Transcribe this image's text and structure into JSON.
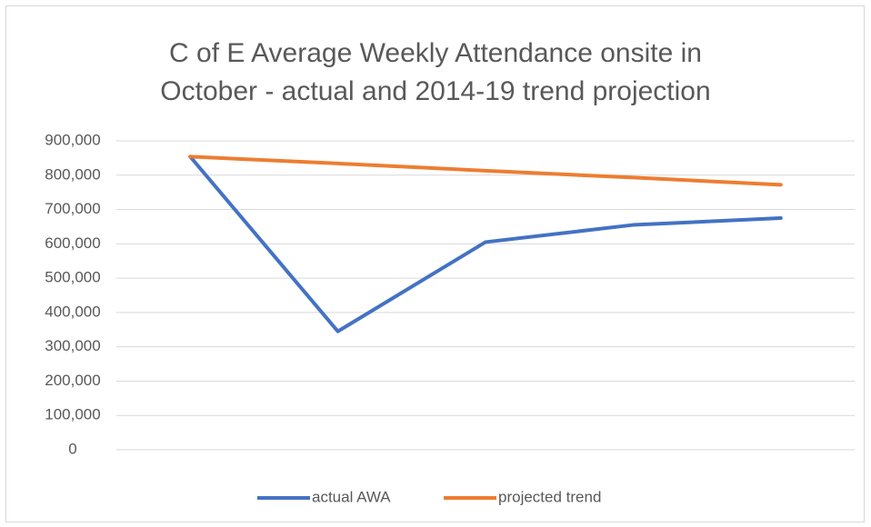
{
  "chart_data": {
    "type": "line",
    "title": "C of E Average Weekly Attendance onsite in October - actual and 2014-19 trend projection",
    "categories": [
      null,
      null,
      null,
      null,
      null
    ],
    "series": [
      {
        "name": "actual AWA",
        "color": "#4472c4",
        "values": [
          854000,
          345000,
          605000,
          655000,
          675000
        ]
      },
      {
        "name": "projected trend",
        "color": "#ed7d31",
        "values": [
          854000,
          834000,
          813000,
          793000,
          772000
        ]
      }
    ],
    "ylim": [
      0,
      900000
    ],
    "yticks": [
      0,
      {
        "value": 100000,
        "label": "100,000"
      },
      {
        "value": 200000,
        "label": "200,000"
      },
      {
        "value": 300000,
        "label": "300,000"
      },
      {
        "value": 400000,
        "label": "400,000"
      },
      {
        "value": 500000,
        "label": "500,000"
      },
      {
        "value": 600000,
        "label": "600,000"
      },
      {
        "value": 700000,
        "label": "700,000"
      },
      {
        "value": 800000,
        "label": "800,000"
      },
      {
        "value": 900000,
        "label": "900,000"
      }
    ],
    "grid": true,
    "legend": "bottom"
  }
}
